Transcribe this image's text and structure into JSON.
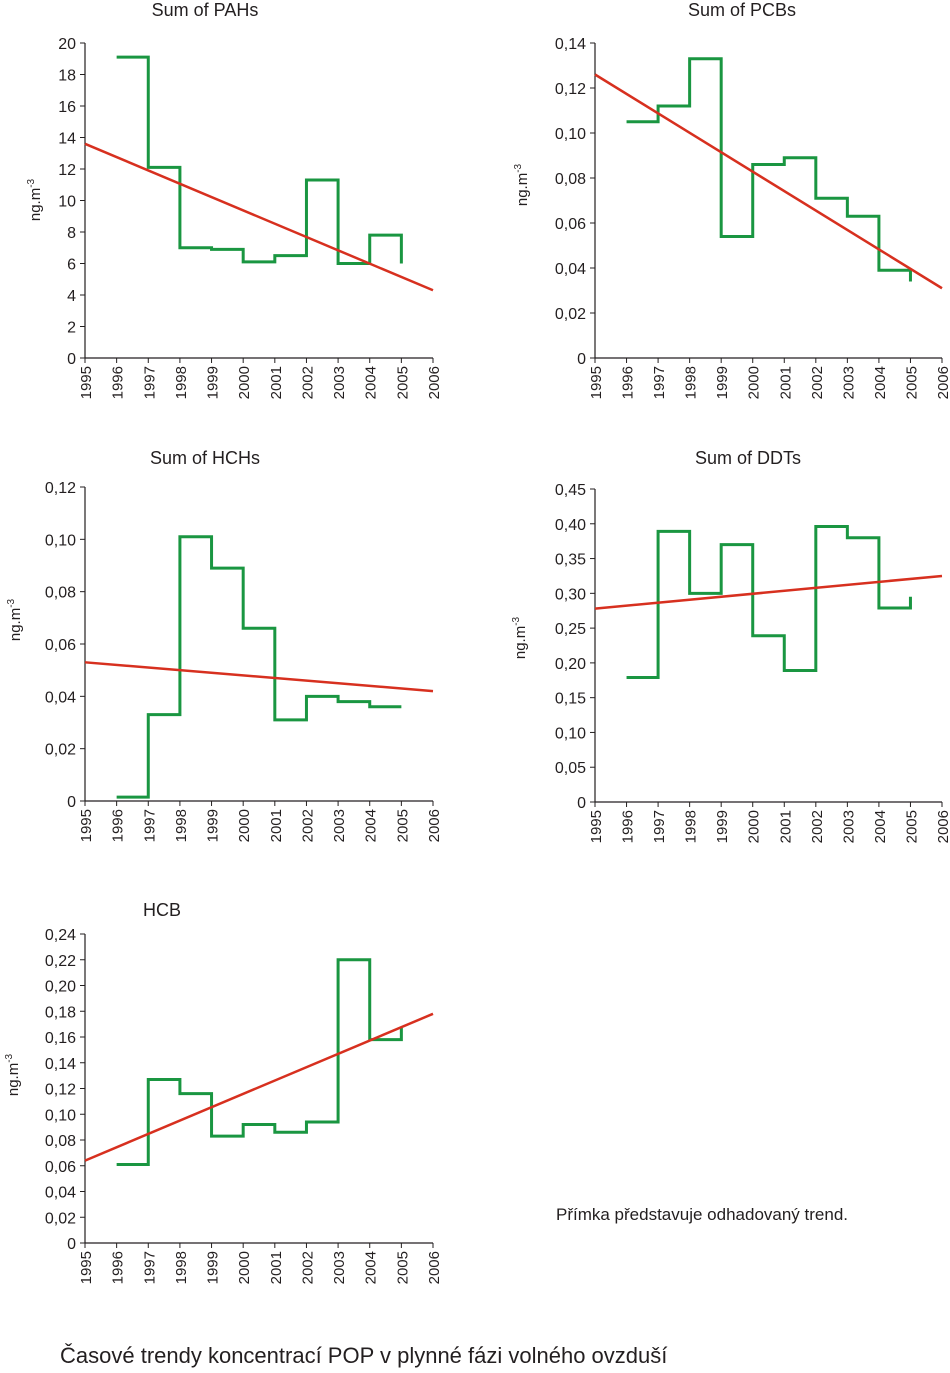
{
  "caption": "Časové trendy koncentrací POP v plynné fázi volného ovzduší",
  "note": "Přímka představuje odhadovaný trend.",
  "colors": {
    "measured": "#1a9641",
    "trend": "#d7301f",
    "axis": "#231f20"
  },
  "chart_data": [
    {
      "type": "line",
      "title": "Sum of PAHs",
      "ylabel": "ng.m-3",
      "x_ticks": [
        "1995",
        "1996",
        "1997",
        "1998",
        "1999",
        "2000",
        "2001",
        "2002",
        "2003",
        "2004",
        "2005",
        "2006"
      ],
      "y_ticks": [
        "0",
        "2",
        "4",
        "6",
        "8",
        "10",
        "12",
        "14",
        "16",
        "18",
        "20"
      ],
      "xlim": [
        1995,
        2006
      ],
      "ylim": [
        0,
        20
      ],
      "step_values": [
        19.1,
        12.1,
        7.0,
        6.9,
        6.1,
        6.5,
        11.3,
        6.0,
        7.8,
        6.0
      ],
      "series": [
        {
          "name": "",
          "kind": "step",
          "x": [
            1996,
            1997,
            1998,
            1999,
            2000,
            2001,
            2002,
            2003,
            2004,
            2005
          ],
          "y": [
            19.1,
            12.1,
            7.0,
            6.9,
            6.1,
            6.5,
            11.3,
            6.0,
            7.8,
            6.0
          ]
        },
        {
          "name": "",
          "kind": "trend",
          "x": [
            1995,
            2006
          ],
          "y": [
            13.6,
            4.3
          ]
        }
      ]
    },
    {
      "type": "line",
      "title": "Sum of PCBs",
      "ylabel": "ng.m-3",
      "x_ticks": [
        "1995",
        "1996",
        "1997",
        "1998",
        "1999",
        "2000",
        "2001",
        "2002",
        "2003",
        "2004",
        "2005",
        "2006"
      ],
      "y_ticks": [
        "0",
        "0,02",
        "0,04",
        "0,06",
        "0,08",
        "0,10",
        "0,12",
        "0,14"
      ],
      "xlim": [
        1995,
        2006
      ],
      "ylim": [
        0,
        0.14
      ],
      "series": [
        {
          "name": "",
          "kind": "step",
          "x": [
            1996,
            1997,
            1998,
            1999,
            2000,
            2001,
            2002,
            2003,
            2004,
            2005
          ],
          "y": [
            0.105,
            0.112,
            0.133,
            0.054,
            0.086,
            0.089,
            0.071,
            0.063,
            0.039,
            0.034
          ]
        },
        {
          "name": "",
          "kind": "trend",
          "x": [
            1995,
            2006
          ],
          "y": [
            0.126,
            0.031
          ]
        }
      ]
    },
    {
      "type": "line",
      "title": "Sum of HCHs",
      "ylabel": "ng.m-3",
      "x_ticks": [
        "1995",
        "1996",
        "1997",
        "1998",
        "1999",
        "2000",
        "2001",
        "2002",
        "2003",
        "2004",
        "2005",
        "2006"
      ],
      "y_ticks": [
        "0",
        "0,02",
        "0,04",
        "0,06",
        "0,08",
        "0,10",
        "0,12"
      ],
      "xlim": [
        1995,
        2006
      ],
      "ylim": [
        0,
        0.12
      ],
      "series": [
        {
          "name": "",
          "kind": "step",
          "x": [
            1996,
            1997,
            1998,
            1999,
            2000,
            2001,
            2002,
            2003,
            2004,
            2005
          ],
          "y": [
            0.0015,
            0.033,
            0.101,
            0.089,
            0.066,
            0.031,
            0.04,
            0.038,
            0.036,
            0.036
          ]
        },
        {
          "name": "",
          "kind": "trend",
          "x": [
            1995,
            2006
          ],
          "y": [
            0.053,
            0.042
          ]
        }
      ]
    },
    {
      "type": "line",
      "title": "Sum of DDTs",
      "ylabel": "ng.m-3",
      "x_ticks": [
        "1995",
        "1996",
        "1997",
        "1998",
        "1999",
        "2000",
        "2001",
        "2002",
        "2003",
        "2004",
        "2005",
        "2006"
      ],
      "y_ticks": [
        "0",
        "0,05",
        "0,10",
        "0,15",
        "0,20",
        "0,25",
        "0,30",
        "0,35",
        "0,40",
        "0,45"
      ],
      "xlim": [
        1995,
        2006
      ],
      "ylim": [
        0,
        0.45
      ],
      "series": [
        {
          "name": "",
          "kind": "step",
          "x": [
            1996,
            1997,
            1998,
            1999,
            2000,
            2001,
            2002,
            2003,
            2004,
            2005
          ],
          "y": [
            0.179,
            0.389,
            0.3,
            0.37,
            0.239,
            0.189,
            0.396,
            0.38,
            0.279,
            0.295
          ]
        },
        {
          "name": "",
          "kind": "trend",
          "x": [
            1995,
            2006
          ],
          "y": [
            0.278,
            0.325
          ]
        }
      ]
    },
    {
      "type": "line",
      "title": "HCB",
      "ylabel": "ng.m-3",
      "x_ticks": [
        "1995",
        "1996",
        "1997",
        "1998",
        "1999",
        "2000",
        "2001",
        "2002",
        "2003",
        "2004",
        "2005",
        "2006"
      ],
      "y_ticks": [
        "0",
        "0,02",
        "0,04",
        "0,06",
        "0,08",
        "0,10",
        "0,12",
        "0,14",
        "0,16",
        "0,18",
        "0,20",
        "0,22",
        "0,24"
      ],
      "xlim": [
        1995,
        2006
      ],
      "ylim": [
        0,
        0.24
      ],
      "series": [
        {
          "name": "",
          "kind": "step",
          "x": [
            1996,
            1997,
            1998,
            1999,
            2000,
            2001,
            2002,
            2003,
            2004,
            2005
          ],
          "y": [
            0.061,
            0.127,
            0.116,
            0.083,
            0.092,
            0.086,
            0.094,
            0.22,
            0.158,
            0.167
          ]
        },
        {
          "name": "",
          "kind": "trend",
          "x": [
            1995,
            2006
          ],
          "y": [
            0.064,
            0.178
          ]
        }
      ]
    }
  ]
}
